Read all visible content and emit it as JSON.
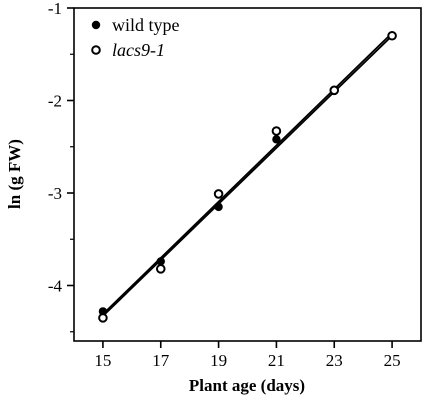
{
  "chart_data": {
    "type": "scatter",
    "xlabel": "Plant age (days)",
    "ylabel": "ln (g FW)",
    "xlim": [
      14,
      26
    ],
    "ylim": [
      -4.6,
      -1.0
    ],
    "xticks": [
      15,
      17,
      19,
      21,
      23,
      25
    ],
    "yticks": [
      -4,
      -3,
      -2,
      -1
    ],
    "xtick_labels": [
      "15",
      "17",
      "19",
      "21",
      "23",
      "25"
    ],
    "ytick_labels": [
      "-4",
      "-3",
      "-2",
      "-1"
    ],
    "grid": false,
    "legend": "top-left",
    "series": [
      {
        "name": "wild type",
        "marker": "filled-circle",
        "x": [
          15,
          17,
          19,
          21,
          23,
          25
        ],
        "y": [
          -4.28,
          -3.74,
          -3.15,
          -2.42,
          -1.89,
          -1.3
        ],
        "fit": {
          "x": [
            15,
            25
          ],
          "y": [
            -4.31,
            -1.27
          ]
        }
      },
      {
        "name": "lacs9-1",
        "marker": "open-circle",
        "x": [
          15,
          17,
          19,
          21,
          23,
          25
        ],
        "y": [
          -4.35,
          -3.82,
          -3.01,
          -2.33,
          -1.89,
          -1.3
        ],
        "fit": {
          "x": [
            15,
            25
          ],
          "y": [
            -4.33,
            -1.3
          ]
        }
      }
    ]
  }
}
